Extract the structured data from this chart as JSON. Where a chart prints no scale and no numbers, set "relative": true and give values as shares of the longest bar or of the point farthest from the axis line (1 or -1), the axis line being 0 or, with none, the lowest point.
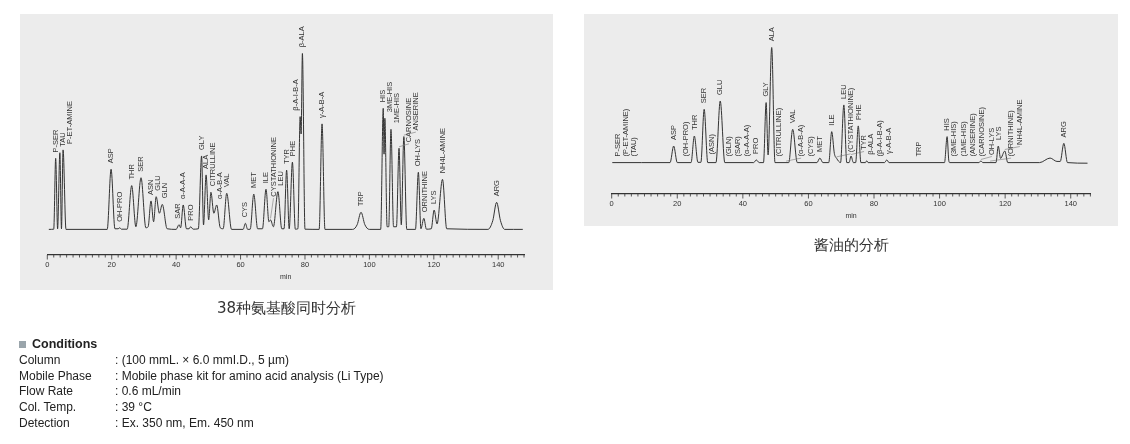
{
  "chart_data": [
    {
      "type": "line",
      "title": "38种氨基酸同时分析",
      "xlabel": "min",
      "relative": true,
      "color": "#333333",
      "marker": "none",
      "xlim": [
        0,
        148
      ],
      "xticks": [
        0,
        {
          "value": 2,
          "label": null
        },
        {
          "value": 4,
          "label": null
        },
        {
          "value": 6,
          "label": null
        },
        {
          "value": 8,
          "label": null
        },
        {
          "value": 10,
          "label": null
        },
        {
          "value": 12,
          "label": null
        },
        {
          "value": 14,
          "label": null
        },
        {
          "value": 16,
          "label": null
        },
        {
          "value": 18,
          "label": null
        },
        20,
        {
          "value": 22,
          "label": null
        },
        {
          "value": 24,
          "label": null
        },
        {
          "value": 26,
          "label": null
        },
        {
          "value": 28,
          "label": null
        },
        {
          "value": 30,
          "label": null
        },
        {
          "value": 32,
          "label": null
        },
        {
          "value": 34,
          "label": null
        },
        {
          "value": 36,
          "label": null
        },
        {
          "value": 38,
          "label": null
        },
        40,
        {
          "value": 42,
          "label": null
        },
        {
          "value": 44,
          "label": null
        },
        {
          "value": 46,
          "label": null
        },
        {
          "value": 48,
          "label": null
        },
        {
          "value": 50,
          "label": null
        },
        {
          "value": 52,
          "label": null
        },
        {
          "value": 54,
          "label": null
        },
        {
          "value": 56,
          "label": null
        },
        {
          "value": 58,
          "label": null
        },
        60,
        {
          "value": 62,
          "label": null
        },
        {
          "value": 64,
          "label": null
        },
        {
          "value": 66,
          "label": null
        },
        {
          "value": 68,
          "label": null
        },
        {
          "value": 70,
          "label": null
        },
        {
          "value": 72,
          "label": null
        },
        {
          "value": 74,
          "label": null
        },
        {
          "value": 76,
          "label": null
        },
        {
          "value": 78,
          "label": null
        },
        80,
        {
          "value": 82,
          "label": null
        },
        {
          "value": 84,
          "label": null
        },
        {
          "value": 86,
          "label": null
        },
        {
          "value": 88,
          "label": null
        },
        {
          "value": 90,
          "label": null
        },
        {
          "value": 92,
          "label": null
        },
        {
          "value": 94,
          "label": null
        },
        {
          "value": 96,
          "label": null
        },
        {
          "value": 98,
          "label": null
        },
        100,
        {
          "value": 102,
          "label": null
        },
        {
          "value": 104,
          "label": null
        },
        {
          "value": 106,
          "label": null
        },
        {
          "value": 108,
          "label": null
        },
        {
          "value": 110,
          "label": null
        },
        {
          "value": 112,
          "label": null
        },
        {
          "value": 114,
          "label": null
        },
        {
          "value": 116,
          "label": null
        },
        {
          "value": 118,
          "label": null
        },
        120,
        {
          "value": 122,
          "label": null
        },
        {
          "value": 124,
          "label": null
        },
        {
          "value": 126,
          "label": null
        },
        {
          "value": 128,
          "label": null
        },
        {
          "value": 130,
          "label": null
        },
        {
          "value": 132,
          "label": null
        },
        {
          "value": 134,
          "label": null
        },
        {
          "value": 136,
          "label": null
        },
        {
          "value": 138,
          "label": null
        },
        140,
        {
          "value": 142,
          "label": null
        },
        {
          "value": 144,
          "label": null
        },
        {
          "value": 146,
          "label": null
        },
        {
          "value": 148,
          "label": null
        }
      ],
      "x": [
        0.6,
        2.0,
        2.6,
        3.2,
        3.9,
        4.4,
        4.9,
        5.8,
        18.6,
        19.8,
        21.0,
        22.0,
        22.5,
        23.0,
        24.8,
        26.2,
        27.5,
        29.1,
        30.6,
        31.3,
        32.2,
        33.0,
        33.8,
        34.8,
        35.7,
        37.2,
        40.0,
        40.9,
        41.4,
        42.2,
        43.2,
        44.0,
        44.5,
        45.3,
        46.9,
        47.9,
        48.5,
        49.3,
        50.1,
        50.8,
        51.7,
        52.6,
        53.7,
        54.6,
        55.7,
        57.2,
        60.8,
        61.5,
        62.2,
        63.0,
        64.1,
        65.3,
        66.8,
        67.9,
        68.8,
        69.3,
        70.2,
        71.6,
        72.8,
        73.5,
        74.3,
        75.1,
        76.1,
        77.0,
        77.8,
        78.5,
        78.8,
        79.2,
        80.0,
        84.4,
        85.3,
        86.2,
        94.8,
        96.2,
        97.4,
        98.6,
        100.0,
        103.5,
        104.3,
        104.55,
        104.8,
        105.5,
        106.0,
        106.7,
        107.5,
        108.4,
        109.2,
        109.9,
        110.7,
        111.6,
        114.3,
        115.2,
        116.0,
        116.9,
        117.7,
        119.2,
        120.1,
        121.0,
        122.7,
        124.0,
        136.8,
        138.3,
        139.5,
        140.7,
        142.0,
        147.5
      ],
      "values": [
        0.127,
        0.128,
        0.479,
        0.13,
        0.507,
        0.13,
        0.521,
        0.127,
        0.127,
        0.425,
        0.13,
        0.13,
        0.135,
        0.128,
        0.128,
        0.344,
        0.14,
        0.383,
        0.135,
        0.14,
        0.268,
        0.165,
        0.289,
        0.207,
        0.251,
        0.13,
        0.127,
        0.15,
        0.135,
        0.248,
        0.13,
        0.13,
        0.14,
        0.128,
        0.13,
        0.491,
        0.149,
        0.397,
        0.174,
        0.311,
        0.207,
        0.248,
        0.135,
        0.13,
        0.306,
        0.127,
        0.127,
        0.157,
        0.127,
        0.128,
        0.302,
        0.13,
        0.13,
        0.326,
        0.165,
        0.174,
        0.14,
        0.314,
        0.13,
        0.13,
        0.421,
        0.13,
        0.46,
        0.128,
        0.13,
        0.686,
        0.6,
        1.0,
        0.128,
        0.127,
        0.65,
        0.127,
        0.127,
        0.15,
        0.212,
        0.15,
        0.127,
        0.127,
        0.727,
        0.5,
        0.678,
        0.14,
        0.14,
        0.623,
        0.14,
        0.14,
        0.529,
        0.15,
        0.587,
        0.127,
        0.127,
        0.41,
        0.13,
        0.182,
        0.128,
        0.13,
        0.223,
        0.154,
        0.375,
        0.13,
        0.127,
        0.17,
        0.261,
        0.17,
        0.127,
        0.127
      ],
      "annotations": [
        {
          "text": "P-SER",
          "x": 2.6,
          "y": 0.479
        },
        {
          "text": "TAU",
          "x": 3.9,
          "y": 0.507
        },
        {
          "text": "P-ET-AMINE",
          "x": 4.9,
          "y": 0.521
        },
        {
          "text": "ASP",
          "x": 19.8,
          "y": 0.425
        },
        {
          "text": "OH-PRO",
          "x": 22.5,
          "y": 0.135
        },
        {
          "text": "THR",
          "x": 26.2,
          "y": 0.344
        },
        {
          "text": "SER",
          "x": 29.1,
          "y": 0.383
        },
        {
          "text": "ASN",
          "x": 32.2,
          "y": 0.268
        },
        {
          "text": "GLU",
          "x": 33.8,
          "y": 0.289
        },
        {
          "text": "GLN",
          "x": 35.7,
          "y": 0.251
        },
        {
          "text": "SAR",
          "x": 40.9,
          "y": 0.15
        },
        {
          "text": "α-A-A-A",
          "x": 42.2,
          "y": 0.248
        },
        {
          "text": "PRO",
          "x": 44.5,
          "y": 0.14
        },
        {
          "text": "GLY",
          "x": 47.9,
          "y": 0.491
        },
        {
          "text": "ALA",
          "x": 49.3,
          "y": 0.397
        },
        {
          "text": "CITRULLINE",
          "x": 50.8,
          "y": 0.311
        },
        {
          "text": "α-A-B-A",
          "x": 52.6,
          "y": 0.248
        },
        {
          "text": "VAL",
          "x": 55.7,
          "y": 0.306
        },
        {
          "text": "CYS",
          "x": 61.5,
          "y": 0.157
        },
        {
          "text": "MET",
          "x": 64.1,
          "y": 0.302
        },
        {
          "text": "ILE",
          "x": 67.9,
          "y": 0.326
        },
        {
          "text": "CYSTATHIONINE",
          "x": 69.3,
          "y": 0.174
        },
        {
          "text": "LEU",
          "x": 71.6,
          "y": 0.314
        },
        {
          "text": "TYR",
          "x": 74.3,
          "y": 0.421
        },
        {
          "text": "PHE",
          "x": 76.1,
          "y": 0.46
        },
        {
          "text": "β-ALA",
          "x": 79.2,
          "y": 1.0
        },
        {
          "text": "β-A-I-B-A",
          "x": 78.5,
          "y": 0.686
        },
        {
          "text": "γ-A-B-A",
          "x": 85.3,
          "y": 0.65
        },
        {
          "text": "TRP",
          "x": 97.4,
          "y": 0.212
        },
        {
          "text": "HIS",
          "x": 104.3,
          "y": 0.727
        },
        {
          "text": "3ME-HIS",
          "x": 104.8,
          "y": 0.678
        },
        {
          "text": "1ME-HIS",
          "x": 106.7,
          "y": 0.623
        },
        {
          "text": "CARNOSINE",
          "x": 109.2,
          "y": 0.529
        },
        {
          "text": "ANSERINE",
          "x": 110.7,
          "y": 0.587
        },
        {
          "text": "OH-LYS",
          "x": 115.2,
          "y": 0.41
        },
        {
          "text": "ORNITHINE",
          "x": 116.9,
          "y": 0.182
        },
        {
          "text": "LYS",
          "x": 120.1,
          "y": 0.223
        },
        {
          "text": "NH4L-AMINE",
          "x": 122.7,
          "y": 0.375
        },
        {
          "text": "ARG",
          "x": 139.5,
          "y": 0.261
        }
      ]
    },
    {
      "type": "line",
      "title": "酱油的分析",
      "xlabel": "min",
      "relative": true,
      "color": "#333333",
      "marker": "none",
      "xlim": [
        0,
        146
      ],
      "xticks": [
        0,
        {
          "value": 2,
          "label": null
        },
        {
          "value": 4,
          "label": null
        },
        {
          "value": 6,
          "label": null
        },
        {
          "value": 8,
          "label": null
        },
        {
          "value": 10,
          "label": null
        },
        {
          "value": 12,
          "label": null
        },
        {
          "value": 14,
          "label": null
        },
        {
          "value": 16,
          "label": null
        },
        {
          "value": 18,
          "label": null
        },
        20,
        {
          "value": 22,
          "label": null
        },
        {
          "value": 24,
          "label": null
        },
        {
          "value": 26,
          "label": null
        },
        {
          "value": 28,
          "label": null
        },
        {
          "value": 30,
          "label": null
        },
        {
          "value": 32,
          "label": null
        },
        {
          "value": 34,
          "label": null
        },
        {
          "value": 36,
          "label": null
        },
        {
          "value": 38,
          "label": null
        },
        40,
        {
          "value": 42,
          "label": null
        },
        {
          "value": 44,
          "label": null
        },
        {
          "value": 46,
          "label": null
        },
        {
          "value": 48,
          "label": null
        },
        {
          "value": 50,
          "label": null
        },
        {
          "value": 52,
          "label": null
        },
        {
          "value": 54,
          "label": null
        },
        {
          "value": 56,
          "label": null
        },
        {
          "value": 58,
          "label": null
        },
        60,
        {
          "value": 62,
          "label": null
        },
        {
          "value": 64,
          "label": null
        },
        {
          "value": 66,
          "label": null
        },
        {
          "value": 68,
          "label": null
        },
        {
          "value": 70,
          "label": null
        },
        {
          "value": 72,
          "label": null
        },
        {
          "value": 74,
          "label": null
        },
        {
          "value": 76,
          "label": null
        },
        {
          "value": 78,
          "label": null
        },
        80,
        {
          "value": 82,
          "label": null
        },
        {
          "value": 84,
          "label": null
        },
        {
          "value": 86,
          "label": null
        },
        {
          "value": 88,
          "label": null
        },
        {
          "value": 90,
          "label": null
        },
        {
          "value": 92,
          "label": null
        },
        {
          "value": 94,
          "label": null
        },
        {
          "value": 96,
          "label": null
        },
        {
          "value": 98,
          "label": null
        },
        100,
        {
          "value": 102,
          "label": null
        },
        {
          "value": 104,
          "label": null
        },
        {
          "value": 106,
          "label": null
        },
        {
          "value": 108,
          "label": null
        },
        {
          "value": 110,
          "label": null
        },
        {
          "value": 112,
          "label": null
        },
        {
          "value": 114,
          "label": null
        },
        {
          "value": 116,
          "label": null
        },
        {
          "value": 118,
          "label": null
        },
        120,
        {
          "value": 122,
          "label": null
        },
        {
          "value": 124,
          "label": null
        },
        {
          "value": 126,
          "label": null
        },
        {
          "value": 128,
          "label": null
        },
        {
          "value": 130,
          "label": null
        },
        {
          "value": 132,
          "label": null
        },
        {
          "value": 134,
          "label": null
        },
        {
          "value": 136,
          "label": null
        },
        {
          "value": 138,
          "label": null
        },
        140,
        {
          "value": 142,
          "label": null
        },
        {
          "value": 144,
          "label": null
        },
        {
          "value": 146,
          "label": null
        }
      ],
      "x": [
        0.3,
        17.8,
        18.9,
        20.0,
        24.2,
        25.2,
        26.3,
        27.2,
        28.2,
        29.3,
        31.8,
        33.1,
        34.5,
        43.3,
        44.1,
        45.0,
        46.3,
        47.1,
        47.7,
        48.8,
        49.8,
        54.0,
        55.2,
        56.6,
        62.6,
        63.5,
        64.4,
        66.2,
        67.1,
        67.9,
        68.6,
        69.8,
        70.8,
        71.7,
        72.4,
        73.0,
        73.7,
        74.4,
        75.2,
        76.0,
        77.4,
        77.8,
        78.2,
        83.2,
        83.9,
        84.6,
        101.5,
        102.3,
        102.8,
        103.1,
        112.0,
        112.6,
        113.2,
        117.2,
        117.9,
        118.6,
        119.9,
        120.8,
        130.5,
        133.7,
        135.8,
        136.8,
        137.9,
        139.0,
        145.0
      ],
      "values": [
        0.214,
        0.214,
        0.327,
        0.214,
        0.214,
        0.395,
        0.216,
        0.216,
        0.577,
        0.214,
        0.214,
        0.634,
        0.214,
        0.214,
        0.232,
        0.214,
        0.214,
        0.623,
        0.266,
        1.0,
        0.214,
        0.214,
        0.441,
        0.214,
        0.214,
        0.245,
        0.214,
        0.214,
        0.425,
        0.277,
        0.243,
        0.214,
        0.607,
        0.214,
        0.214,
        0.259,
        0.214,
        0.214,
        0.464,
        0.214,
        0.214,
        0.227,
        0.214,
        0.214,
        0.232,
        0.214,
        0.214,
        0.391,
        0.23,
        0.214,
        0.214,
        0.225,
        0.214,
        0.214,
        0.327,
        0.243,
        0.293,
        0.214,
        0.214,
        0.245,
        0.222,
        0.222,
        0.345,
        0.214,
        0.21
      ],
      "annotations": [
        {
          "text": "P-SER",
          "x": 1.8,
          "y": 0.214
        },
        {
          "text": "(P-ET-AMINE)",
          "x": 4.2,
          "y": 0.214
        },
        {
          "text": "(TAU)",
          "x": 6.6,
          "y": 0.214
        },
        {
          "text": "ASP",
          "x": 18.9,
          "y": 0.327
        },
        {
          "text": "(OH-PRO)",
          "x": 22.6,
          "y": 0.214
        },
        {
          "text": "THR",
          "x": 25.2,
          "y": 0.395
        },
        {
          "text": "SER",
          "x": 28.2,
          "y": 0.577
        },
        {
          "text": "(ASN)",
          "x": 30.5,
          "y": 0.214
        },
        {
          "text": "GLU",
          "x": 33.1,
          "y": 0.634
        },
        {
          "text": "(GLN)",
          "x": 35.8,
          "y": 0.214
        },
        {
          "text": "(SAR)",
          "x": 38.6,
          "y": 0.214
        },
        {
          "text": "(α-A-A-A)",
          "x": 41.0,
          "y": 0.214
        },
        {
          "text": "PRO",
          "x": 44.1,
          "y": 0.232
        },
        {
          "text": "GLY",
          "x": 47.1,
          "y": 0.623
        },
        {
          "text": "ALA",
          "x": 48.8,
          "y": 1.0
        },
        {
          "text": "(CITRULLINE)",
          "x": 50.9,
          "y": 0.214
        },
        {
          "text": "(α-A-B-A)",
          "x": 53.2,
          "y": 0.214
        },
        {
          "text": "VAL",
          "x": 55.2,
          "y": 0.441
        },
        {
          "text": "(CYS)",
          "x": 60.8,
          "y": 0.214
        },
        {
          "text": "MET",
          "x": 63.5,
          "y": 0.245
        },
        {
          "text": "ILE",
          "x": 67.1,
          "y": 0.425
        },
        {
          "text": "(CYSTATHIONINE)",
          "x": 68.6,
          "y": 0.243
        },
        {
          "text": "LEU",
          "x": 70.8,
          "y": 0.607
        },
        {
          "text": "TYR",
          "x": 73.0,
          "y": 0.259
        },
        {
          "text": "PHE",
          "x": 75.2,
          "y": 0.464
        },
        {
          "text": "β-ALA",
          "x": 77.8,
          "y": 0.227
        },
        {
          "text": "(β-A-I-B-A)",
          "x": 80.2,
          "y": 0.214
        },
        {
          "text": "γ-A-B-A",
          "x": 83.9,
          "y": 0.232
        },
        {
          "text": "TRP",
          "x": 93.7,
          "y": 0.214
        },
        {
          "text": "HIS",
          "x": 102.3,
          "y": 0.391
        },
        {
          "text": "(3ME-HIS)",
          "x": 104.2,
          "y": 0.214
        },
        {
          "text": "(1ME-HIS)",
          "x": 106.5,
          "y": 0.214
        },
        {
          "text": "(ANSERINE)",
          "x": 108.8,
          "y": 0.214
        },
        {
          "text": "(CARNOSINE)",
          "x": 110.9,
          "y": 0.214
        },
        {
          "text": "OH-LYS",
          "x": 112.6,
          "y": 0.225
        },
        {
          "text": "(ORNITHINE)",
          "x": 115.4,
          "y": 0.214
        },
        {
          "text": "LYS",
          "x": 117.9,
          "y": 0.327
        },
        {
          "text": "NH4L-AMINE",
          "x": 119.9,
          "y": 0.293
        },
        {
          "text": "ARG",
          "x": 137.9,
          "y": 0.345
        }
      ]
    },
    {
      "type": "other",
      "title": "Conditions",
      "annotations": [
        "Column",
        ": (100 mmL. × 6.0 mmI.D., 5 µm)",
        "Mobile Phase",
        ": Mobile phase kit for amino acid analysis (Li Type)",
        "Flow Rate",
        ": 0.6 mL/min",
        "Col. Temp.",
        ": 39 °C",
        "Detection",
        ": Ex. 350 nm, Em. 450 nm"
      ]
    }
  ]
}
